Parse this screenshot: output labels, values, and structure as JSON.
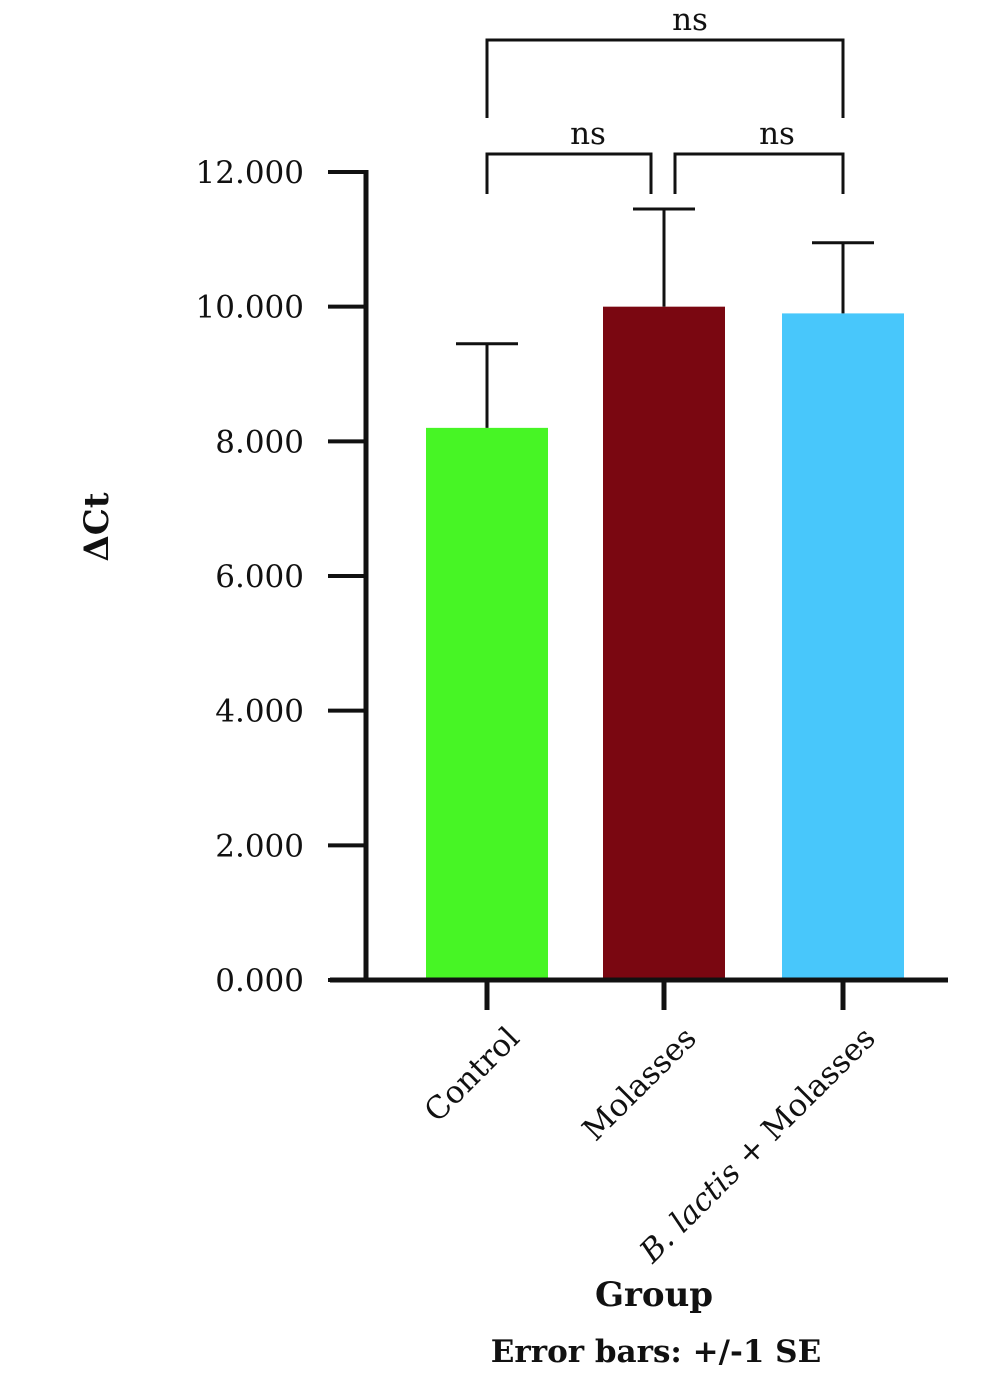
{
  "chart_data": {
    "type": "bar",
    "categories": [
      "Control",
      "Molasses",
      "B. lactis + Molasses"
    ],
    "category_labels": [
      {
        "italic": "",
        "normal": "Control"
      },
      {
        "italic": "",
        "normal": "Molasses"
      },
      {
        "italic": "B. lactis",
        "normal": " + Molasses"
      }
    ],
    "values": [
      8.2,
      10.0,
      9.9
    ],
    "error_se": [
      1.25,
      1.45,
      1.05
    ],
    "colors": [
      "#47f525",
      "#7a0711",
      "#48c7fb"
    ],
    "ylim": [
      0,
      12
    ],
    "yticks": [
      0,
      2,
      4,
      6,
      8,
      10,
      12
    ],
    "ytick_labels": [
      "0.000",
      "2.000",
      "4.000",
      "6.000",
      "8.000",
      "10.000",
      "12.000"
    ],
    "ylabel": "ΔCt",
    "xlabel": "Group",
    "footnote": "Error bars: +/-1 SE",
    "grid": false,
    "legend": "none",
    "significance": [
      {
        "from": 0,
        "to": 2,
        "label": "ns",
        "level": 2
      },
      {
        "from": 0,
        "to": 1,
        "label": "ns",
        "level": 1
      },
      {
        "from": 1,
        "to": 2,
        "label": "ns",
        "level": 1
      }
    ]
  }
}
